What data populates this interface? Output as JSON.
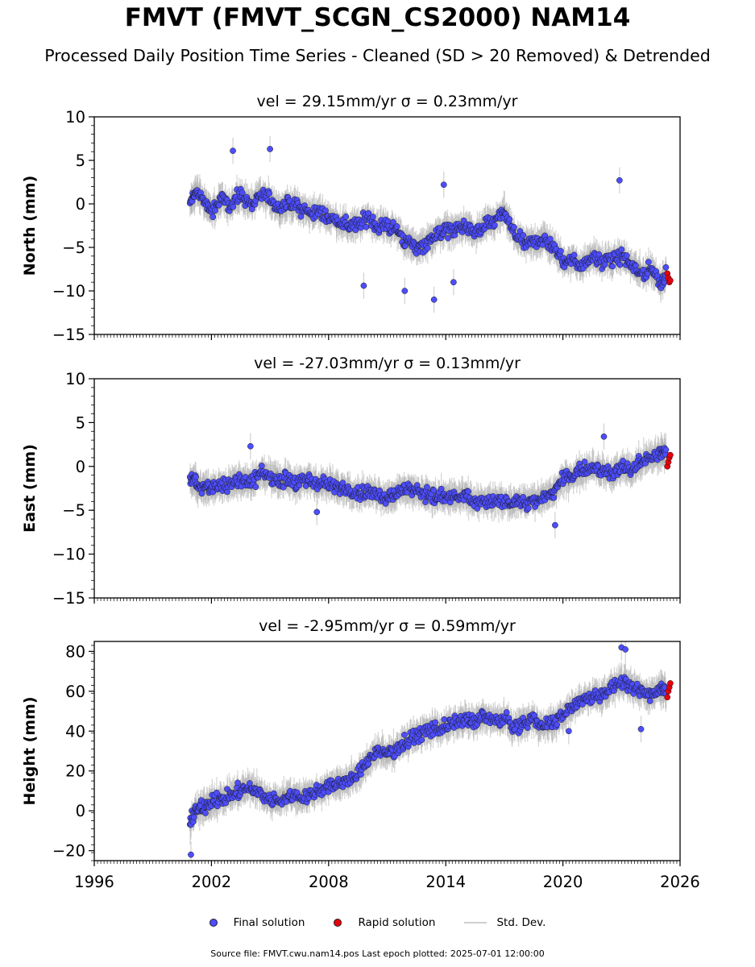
{
  "title": "FMVT (FMVT_SCGN_CS2000) NAM14",
  "subtitle": "Processed Daily Position Time Series - Cleaned (SD > 20 Removed) & Detrended",
  "legend": {
    "final": "Final solution",
    "rapid": "Rapid solution",
    "std": "Std. Dev."
  },
  "source": "Source file: FMVT.cwu.nam14.pos  Last epoch plotted: 2025-07-01 12:00:00",
  "colors": {
    "final": "#4d4dff",
    "rapid": "#e8000b",
    "std": "#b0b0b0",
    "marker_edge": "#1a1a1a"
  },
  "chart_data": [
    {
      "type": "scatter",
      "title": "vel = 29.15mm/yr   σ = 0.23mm/yr",
      "ylabel": "North (mm)",
      "xlim": [
        1996,
        2026
      ],
      "ylim": [
        -15,
        10
      ],
      "yticks": [
        -15,
        -10,
        -5,
        0,
        5,
        10
      ],
      "xticks": [
        1996,
        2002,
        2008,
        2014,
        2020,
        2026
      ],
      "show_xticklabels": false,
      "series": [
        {
          "name": "Final solution",
          "x": [
            2000.9,
            2001.2,
            2001.6,
            2002.0,
            2002.5,
            2003.0,
            2003.5,
            2004.0,
            2004.5,
            2005.0,
            2005.5,
            2006.0,
            2006.5,
            2007.0,
            2007.5,
            2008.0,
            2008.5,
            2009.0,
            2009.5,
            2010.0,
            2010.5,
            2011.0,
            2011.5,
            2012.0,
            2012.5,
            2013.0,
            2013.5,
            2014.0,
            2014.5,
            2015.0,
            2015.5,
            2016.0,
            2016.5,
            2017.0,
            2017.5,
            2018.0,
            2018.5,
            2019.0,
            2019.5,
            2020.0,
            2020.5,
            2021.0,
            2021.5,
            2022.0,
            2022.5,
            2023.0,
            2023.5,
            2024.0,
            2024.5,
            2025.0,
            2025.3
          ],
          "y": [
            0.0,
            1.5,
            0.5,
            -1.0,
            0.5,
            0.0,
            1.0,
            0.0,
            1.0,
            0.5,
            -0.5,
            0.0,
            -0.5,
            -1.0,
            -1.0,
            -1.5,
            -2.0,
            -2.5,
            -2.5,
            -1.5,
            -2.5,
            -2.5,
            -3.0,
            -4.5,
            -5.0,
            -4.5,
            -3.5,
            -3.0,
            -3.0,
            -2.5,
            -3.5,
            -2.5,
            -2.0,
            -1.0,
            -3.5,
            -4.5,
            -4.5,
            -4.0,
            -5.0,
            -6.5,
            -6.5,
            -7.0,
            -6.0,
            -6.5,
            -6.5,
            -6.0,
            -7.0,
            -8.0,
            -7.5,
            -9.0,
            -8.0
          ]
        },
        {
          "name": "Rapid solution",
          "x": [
            2025.35,
            2025.4,
            2025.45,
            2025.5
          ],
          "y": [
            -8.0,
            -8.5,
            -9.0,
            -8.8
          ]
        },
        {
          "name": "Final solution outliers",
          "x": [
            2003.1,
            2005.0,
            2009.8,
            2011.9,
            2013.4,
            2014.4,
            2022.9,
            2013.9
          ],
          "y": [
            6.1,
            6.3,
            -9.4,
            -10.0,
            -11.0,
            -9.0,
            2.7,
            2.2
          ]
        }
      ]
    },
    {
      "type": "scatter",
      "title": "vel = -27.03mm/yr   σ = 0.13mm/yr",
      "ylabel": "East (mm)",
      "xlim": [
        1996,
        2026
      ],
      "ylim": [
        -15,
        10
      ],
      "yticks": [
        -15,
        -10,
        -5,
        0,
        5,
        10
      ],
      "xticks": [
        1996,
        2002,
        2008,
        2014,
        2020,
        2026
      ],
      "show_xticklabels": false,
      "series": [
        {
          "name": "Final solution",
          "x": [
            2000.9,
            2001.2,
            2001.6,
            2002.0,
            2002.5,
            2003.0,
            2003.5,
            2004.0,
            2004.5,
            2005.0,
            2005.5,
            2006.0,
            2006.5,
            2007.0,
            2007.5,
            2008.0,
            2008.5,
            2009.0,
            2009.5,
            2010.0,
            2010.5,
            2011.0,
            2011.5,
            2012.0,
            2012.5,
            2013.0,
            2013.5,
            2014.0,
            2014.5,
            2015.0,
            2015.5,
            2016.0,
            2016.5,
            2017.0,
            2017.5,
            2018.0,
            2018.5,
            2019.0,
            2019.5,
            2020.0,
            2020.5,
            2021.0,
            2021.5,
            2022.0,
            2022.5,
            2023.0,
            2023.5,
            2024.0,
            2024.5,
            2025.0,
            2025.3
          ],
          "y": [
            -1.5,
            -2.0,
            -2.5,
            -2.5,
            -2.0,
            -2.0,
            -1.5,
            -2.0,
            -1.0,
            -1.0,
            -1.5,
            -1.5,
            -2.0,
            -1.5,
            -2.0,
            -2.0,
            -2.5,
            -2.5,
            -3.0,
            -3.0,
            -3.0,
            -3.5,
            -3.0,
            -2.5,
            -3.0,
            -3.0,
            -3.5,
            -3.5,
            -3.5,
            -3.5,
            -4.0,
            -4.0,
            -4.0,
            -4.0,
            -4.0,
            -4.0,
            -4.0,
            -3.5,
            -3.0,
            -1.5,
            -1.0,
            -0.5,
            0.0,
            -0.5,
            -1.0,
            0.0,
            -0.5,
            0.5,
            1.0,
            1.5,
            1.5
          ]
        },
        {
          "name": "Rapid solution",
          "x": [
            2025.35,
            2025.4,
            2025.45,
            2025.5
          ],
          "y": [
            0.0,
            0.5,
            1.0,
            1.3
          ]
        },
        {
          "name": "Final solution outliers",
          "x": [
            2022.1,
            2004.0,
            2007.4,
            2019.6
          ],
          "y": [
            3.4,
            2.3,
            -5.2,
            -6.7
          ]
        }
      ]
    },
    {
      "type": "scatter",
      "title": "vel = -2.95mm/yr   σ = 0.59mm/yr",
      "ylabel": "Height (mm)",
      "xlim": [
        1996,
        2026
      ],
      "ylim": [
        -25,
        85
      ],
      "yticks": [
        -20,
        0,
        20,
        40,
        60,
        80
      ],
      "xticks": [
        1996,
        2002,
        2008,
        2014,
        2020,
        2026
      ],
      "xticklabels": [
        "1996",
        "2002",
        "2008",
        "2014",
        "2020",
        "2026"
      ],
      "show_xticklabels": true,
      "series": [
        {
          "name": "Final solution",
          "x": [
            2000.9,
            2001.2,
            2001.6,
            2002.0,
            2002.5,
            2003.0,
            2003.5,
            2004.0,
            2004.5,
            2005.0,
            2005.5,
            2006.0,
            2006.5,
            2007.0,
            2007.5,
            2008.0,
            2008.5,
            2009.0,
            2009.5,
            2010.0,
            2010.5,
            2011.0,
            2011.5,
            2012.0,
            2012.5,
            2013.0,
            2013.5,
            2014.0,
            2014.5,
            2015.0,
            2015.5,
            2016.0,
            2016.5,
            2017.0,
            2017.5,
            2018.0,
            2018.5,
            2019.0,
            2019.5,
            2020.0,
            2020.5,
            2021.0,
            2021.5,
            2022.0,
            2022.5,
            2023.0,
            2023.5,
            2024.0,
            2024.5,
            2025.0,
            2025.3
          ],
          "y": [
            -5,
            0,
            2,
            5,
            6,
            8,
            10,
            12,
            9,
            5,
            6,
            8,
            7,
            8,
            10,
            12,
            14,
            15,
            18,
            25,
            30,
            28,
            32,
            35,
            38,
            40,
            42,
            42,
            44,
            46,
            44,
            48,
            45,
            46,
            42,
            44,
            46,
            42,
            44,
            48,
            52,
            56,
            58,
            58,
            62,
            65,
            62,
            60,
            58,
            62,
            60
          ]
        },
        {
          "name": "Rapid solution",
          "x": [
            2025.35,
            2025.4,
            2025.45,
            2025.5
          ],
          "y": [
            57,
            60,
            62,
            64
          ]
        },
        {
          "name": "Final solution outliers",
          "x": [
            2000.95,
            2023.0,
            2023.2,
            2020.3,
            2024.0
          ],
          "y": [
            -22,
            82,
            81,
            40,
            41
          ]
        }
      ]
    }
  ]
}
